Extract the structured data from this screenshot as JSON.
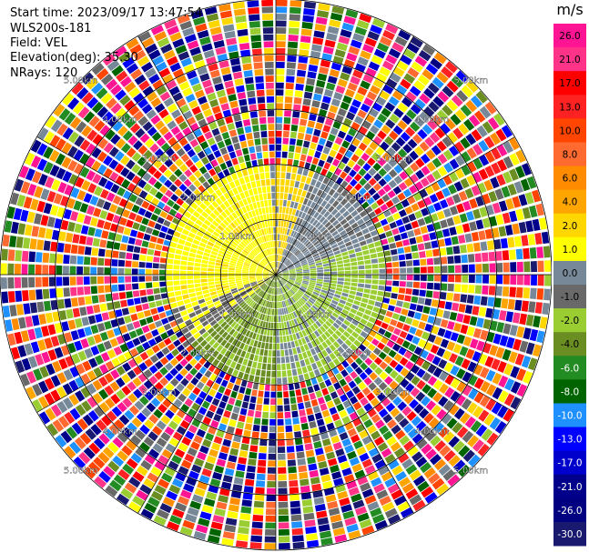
{
  "header": {
    "start_time": "Start time: 2023/09/17 13:47:54",
    "instrument": "WLS200s-181",
    "field": "Field: VEL",
    "elevation": "Elevation(deg): 35.30",
    "nrays": "NRays: 120"
  },
  "chart_data": {
    "type": "heatmap",
    "projection": "polar PPI scan",
    "field": "VEL",
    "units": "m/s",
    "rays": 120,
    "range_rings_km": [
      1.0,
      2.0,
      3.0,
      4.0,
      5.0
    ],
    "ring_labels": [
      "1.00km",
      "2.00km",
      "3.00km",
      "4.00km",
      "5.00km"
    ],
    "spokes_deg": [
      0,
      30,
      60,
      90,
      120,
      150,
      180,
      210,
      240,
      270,
      300,
      330
    ],
    "colorbar": {
      "title": "m/s",
      "ticks": [
        "26.0",
        "21.0",
        "17.0",
        "13.0",
        "10.0",
        "8.0",
        "6.0",
        "4.0",
        "2.0",
        "1.0",
        "0.0",
        "-1.0",
        "-2.0",
        "-4.0",
        "-6.0",
        "-8.0",
        "-10.0",
        "-13.0",
        "-17.0",
        "-21.0",
        "-26.0",
        "-30.0"
      ],
      "colors": [
        "#ff1493",
        "#ff3388",
        "#ff0000",
        "#ff2222",
        "#ff4500",
        "#ff6a30",
        "#ff8c00",
        "#ffa500",
        "#ffd700",
        "#ffff00",
        "#778899",
        "#696969",
        "#9acd32",
        "#6b8e23",
        "#228b22",
        "#006400",
        "#1e90ff",
        "#0000ff",
        "#0000cd",
        "#00008b",
        "#000080",
        "#191970"
      ]
    },
    "pattern": {
      "near_field_km": 2.0,
      "positive_sector": "north-west, yellow 1.0–4.0 m/s",
      "negative_sector": "south-east, green −1.0 to −4.0 m/s",
      "near_zero": "grey 0.0 m/s band",
      "far_field": "noisy mixed velocities beyond ~2 km"
    }
  }
}
